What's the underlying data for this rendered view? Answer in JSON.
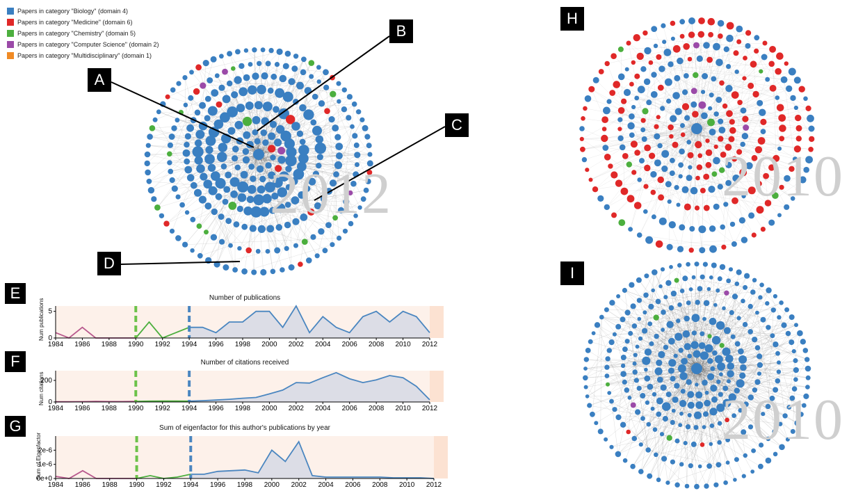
{
  "legend": [
    {
      "label": "Papers in category \"Biology\" (domain 4)",
      "color": "#3a7fc1"
    },
    {
      "label": "Papers in category \"Medicine\" (domain 6)",
      "color": "#e02828"
    },
    {
      "label": "Papers in category \"Chemistry\" (domain 5)",
      "color": "#4caf3e"
    },
    {
      "label": "Papers in category \"Computer Science\" (domain 2)",
      "color": "#9b4aa8"
    },
    {
      "label": "Papers in category \"Multidisciplinary\" (domain 1)",
      "color": "#f08a24"
    }
  ],
  "markers": {
    "a": "A",
    "b": "B",
    "c": "C",
    "d": "D",
    "e": "E",
    "f": "F",
    "g": "G",
    "h": "H",
    "i": "I"
  },
  "year_labels": {
    "main": "2012",
    "h": "2010",
    "i": "2010"
  },
  "colors": {
    "biology": "#3a7fc1",
    "medicine": "#e02828",
    "chemistry": "#4caf3e",
    "cs": "#9b4aa8",
    "multi": "#f08a24",
    "early": "#b85a8e",
    "fill": "#dcdde6",
    "bg": "#fdf1ea",
    "dash_green": "#6cc24a",
    "dash_blue": "#4a86c0"
  },
  "chart_data": [
    {
      "type": "line",
      "title": "Number of publications",
      "ylabel": "Num publications",
      "x": [
        1984,
        1985,
        1986,
        1987,
        1988,
        1989,
        1990,
        1991,
        1992,
        1993,
        1994,
        1995,
        1996,
        1997,
        1998,
        1999,
        2000,
        2001,
        2002,
        2003,
        2004,
        2005,
        2006,
        2007,
        2008,
        2009,
        2010,
        2011,
        2012
      ],
      "y": [
        1,
        0,
        2,
        0,
        0,
        0,
        0,
        3,
        0,
        1,
        2,
        2,
        1,
        3,
        3,
        5,
        5,
        2,
        6,
        1,
        4,
        2,
        1,
        4,
        5,
        3,
        5,
        4,
        1
      ],
      "xlim": [
        1984,
        2012
      ],
      "ylim": [
        0,
        6
      ],
      "yticks": [
        "0",
        "5"
      ],
      "xticks": [
        "1984",
        "1986",
        "1988",
        "1990",
        "1992",
        "1994",
        "1996",
        "1998",
        "2000",
        "2002",
        "2004",
        "2006",
        "2008",
        "2010",
        "2012"
      ],
      "markers": [
        1990,
        1994
      ]
    },
    {
      "type": "line",
      "title": "Number of citations received",
      "ylabel": "Num citations",
      "x": [
        1984,
        1985,
        1986,
        1987,
        1988,
        1989,
        1990,
        1991,
        1992,
        1993,
        1994,
        1995,
        1996,
        1997,
        1998,
        1999,
        2000,
        2001,
        2002,
        2003,
        2004,
        2005,
        2006,
        2007,
        2008,
        2009,
        2010,
        2011,
        2012
      ],
      "y": [
        2,
        2,
        3,
        5,
        4,
        4,
        6,
        8,
        9,
        9,
        8,
        12,
        18,
        25,
        35,
        42,
        75,
        110,
        180,
        175,
        225,
        272,
        215,
        180,
        205,
        245,
        225,
        145,
        20
      ],
      "xlim": [
        1984,
        2012
      ],
      "ylim": [
        0,
        290
      ],
      "yticks": [
        "0",
        "200"
      ],
      "xticks": [
        "1984",
        "1986",
        "1988",
        "1990",
        "1992",
        "1994",
        "1996",
        "1998",
        "2000",
        "2002",
        "2004",
        "2006",
        "2008",
        "2010",
        "2012"
      ],
      "markers": [
        1990,
        1994
      ]
    },
    {
      "type": "line",
      "title": "Sum of eigenfactor for this author's publications by year",
      "ylabel": "Sum of Eigenfactor",
      "x": [
        1984,
        1985,
        1986,
        1987,
        1988,
        1989,
        1990,
        1991,
        1992,
        1993,
        1994,
        1995,
        1996,
        1997,
        1998,
        1999,
        2000,
        2001,
        2002,
        2003,
        2004,
        2005,
        2006,
        2007,
        2008,
        2009,
        2010,
        2011,
        2012
      ],
      "y": [
        1.5e-07,
        0,
        5.5e-07,
        0,
        0,
        0,
        0,
        2e-07,
        0,
        1e-07,
        3e-07,
        3e-07,
        5e-07,
        5.5e-07,
        6e-07,
        4e-07,
        2e-06,
        1.2e-06,
        2.6e-06,
        2e-07,
        1e-07,
        1e-07,
        1e-07,
        1e-07,
        1e-07,
        5e-08,
        5e-08,
        5e-08,
        0
      ],
      "xlim": [
        1984,
        2012
      ],
      "ylim": [
        0,
        3e-06
      ],
      "yticks": [
        "0e+0",
        "1e-6",
        "2e-6"
      ],
      "xticks": [
        "1984",
        "1986",
        "1988",
        "1990",
        "1992",
        "1994",
        "1996",
        "1998",
        "2000",
        "2002",
        "2004",
        "2006",
        "2008",
        "2010",
        "2012"
      ],
      "markers": [
        1990,
        1994
      ]
    }
  ]
}
